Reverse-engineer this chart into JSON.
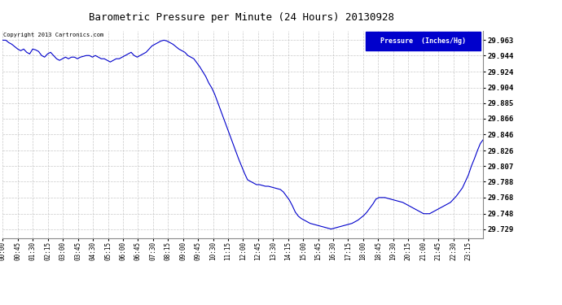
{
  "title": "Barometric Pressure per Minute (24 Hours) 20130928",
  "copyright": "Copyright 2013 Cartronics.com",
  "legend_label": "Pressure  (Inches/Hg)",
  "line_color": "#0000cc",
  "background_color": "#ffffff",
  "plot_bg_color": "#ffffff",
  "grid_color": "#bbbbbb",
  "yticks": [
    29.729,
    29.748,
    29.768,
    29.788,
    29.807,
    29.826,
    29.846,
    29.866,
    29.885,
    29.904,
    29.924,
    29.944,
    29.963
  ],
  "ylim": [
    29.718,
    29.975
  ],
  "xtick_labels": [
    "00:00",
    "00:45",
    "01:30",
    "02:15",
    "03:00",
    "03:45",
    "04:30",
    "05:15",
    "06:00",
    "06:45",
    "07:30",
    "08:15",
    "09:00",
    "09:45",
    "10:30",
    "11:15",
    "12:00",
    "12:45",
    "13:30",
    "14:15",
    "15:00",
    "15:45",
    "16:30",
    "17:15",
    "18:00",
    "18:45",
    "19:30",
    "20:15",
    "21:00",
    "21:45",
    "22:30",
    "23:15"
  ],
  "pressure_data": [
    29.963,
    29.963,
    29.96,
    29.958,
    29.955,
    29.952,
    29.95,
    29.952,
    29.948,
    29.946,
    29.952,
    29.951,
    29.949,
    29.944,
    29.942,
    29.946,
    29.948,
    29.944,
    29.94,
    29.938,
    29.94,
    29.942,
    29.94,
    29.942,
    29.942,
    29.94,
    29.942,
    29.943,
    29.944,
    29.944,
    29.942,
    29.944,
    29.942,
    29.94,
    29.94,
    29.938,
    29.936,
    29.938,
    29.94,
    29.94,
    29.942,
    29.944,
    29.946,
    29.948,
    29.944,
    29.942,
    29.944,
    29.946,
    29.948,
    29.952,
    29.956,
    29.958,
    29.96,
    29.962,
    29.963,
    29.962,
    29.96,
    29.958,
    29.955,
    29.952,
    29.95,
    29.948,
    29.944,
    29.942,
    29.94,
    29.935,
    29.93,
    29.924,
    29.918,
    29.91,
    29.904,
    29.896,
    29.886,
    29.876,
    29.866,
    29.856,
    29.846,
    29.836,
    29.826,
    29.816,
    29.807,
    29.798,
    29.79,
    29.788,
    29.786,
    29.784,
    29.784,
    29.783,
    29.782,
    29.782,
    29.781,
    29.78,
    29.779,
    29.778,
    29.775,
    29.77,
    29.765,
    29.758,
    29.75,
    29.745,
    29.742,
    29.74,
    29.738,
    29.736,
    29.735,
    29.734,
    29.733,
    29.732,
    29.731,
    29.73,
    29.729,
    29.73,
    29.731,
    29.732,
    29.733,
    29.734,
    29.735,
    29.736,
    29.738,
    29.74,
    29.743,
    29.746,
    29.75,
    29.755,
    29.76,
    29.766,
    29.768,
    29.768,
    29.768,
    29.767,
    29.766,
    29.765,
    29.764,
    29.763,
    29.762,
    29.76,
    29.758,
    29.756,
    29.754,
    29.752,
    29.75,
    29.748,
    29.748,
    29.748,
    29.75,
    29.752,
    29.754,
    29.756,
    29.758,
    29.76,
    29.762,
    29.766,
    29.77,
    29.775,
    29.78,
    29.788,
    29.796,
    29.807,
    29.816,
    29.826,
    29.835,
    29.84
  ]
}
